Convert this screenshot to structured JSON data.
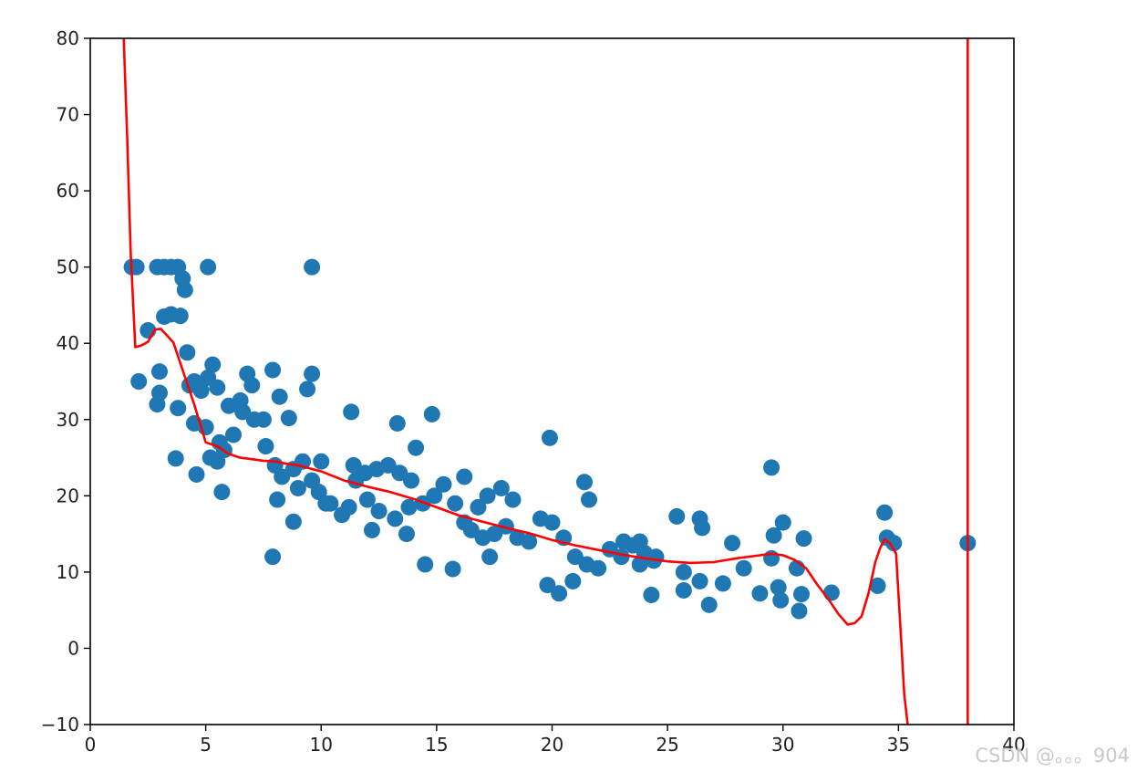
{
  "chart_data": {
    "type": "scatter",
    "title": "",
    "xlabel": "",
    "ylabel": "",
    "xlim": [
      0,
      40
    ],
    "ylim": [
      -10,
      80
    ],
    "x_ticks": [
      0,
      5,
      10,
      15,
      20,
      25,
      30,
      35,
      40
    ],
    "y_ticks": [
      -10,
      0,
      10,
      20,
      30,
      40,
      50,
      60,
      70,
      80
    ],
    "x_tick_labels": [
      "0",
      "5",
      "10",
      "15",
      "20",
      "25",
      "30",
      "35",
      "40"
    ],
    "y_tick_labels": [
      "−10",
      "0",
      "10",
      "20",
      "30",
      "40",
      "50",
      "60",
      "70",
      "80"
    ],
    "grid": false,
    "legend": "none",
    "colors": {
      "points": "#1f77b4",
      "fit_line": "#ff0000",
      "axes": "#000000"
    },
    "scatter": {
      "x": [
        1.8,
        2.0,
        2.9,
        3.2,
        3.5,
        3.8,
        4.0,
        4.1,
        5.1,
        9.6,
        2.5,
        3.2,
        3.5,
        3.9,
        4.2,
        3.0,
        3.0,
        2.1,
        2.9,
        3.8,
        4.5,
        5.0,
        5.2,
        5.5,
        4.3,
        4.8,
        5.3,
        6.0,
        6.5,
        7.0,
        7.5,
        4.6,
        5.7,
        3.7,
        4.5,
        5.1,
        5.5,
        5.8,
        6.2,
        6.6,
        7.1,
        7.6,
        8.0,
        8.3,
        8.8,
        9.2,
        9.6,
        10.0,
        6.8,
        8.2,
        9.6,
        9.4,
        8.6,
        8.1,
        9.0,
        9.9,
        10.4,
        10.9,
        11.4,
        11.9,
        12.4,
        12.9,
        13.4,
        13.9,
        7.9,
        5.6,
        7.9,
        8.8,
        10.2,
        11.5,
        12.0,
        12.5,
        13.2,
        13.8,
        14.4,
        14.9,
        15.3,
        15.8,
        16.2,
        11.3,
        13.3,
        14.1,
        14.8,
        14.5,
        15.7,
        13.7,
        11.2,
        12.2,
        16.5,
        17.0,
        17.5,
        18.0,
        18.5,
        19.0,
        17.3,
        17.8,
        16.2,
        16.8,
        18.3,
        19.5,
        20.0,
        20.5,
        21.0,
        21.5,
        17.2,
        19.9,
        21.4,
        21.6,
        19.8,
        20.3,
        20.9,
        22.0,
        22.5,
        23.0,
        23.5,
        24.0,
        24.5,
        23.1,
        24.3,
        23.8,
        25.4,
        25.7,
        26.4,
        26.5,
        27.4,
        27.8,
        28.3,
        29.0,
        29.6,
        30.0,
        29.5,
        29.5,
        29.8,
        29.9,
        30.6,
        30.8,
        30.7,
        30.9,
        32.1,
        34.1,
        34.4,
        34.5,
        34.8,
        38.0,
        26.8,
        26.4,
        25.7,
        24.4,
        23.8
      ],
      "y": [
        50,
        50,
        50,
        50,
        50,
        50,
        48.5,
        47,
        50,
        50,
        41.7,
        43.5,
        43.8,
        43.6,
        38.8,
        36.3,
        33.5,
        35,
        32,
        31.5,
        29.5,
        29,
        25,
        24.5,
        34.5,
        33.8,
        37.2,
        31.8,
        32.5,
        34.5,
        30,
        22.8,
        20.5,
        24.9,
        35,
        35.5,
        34.2,
        26,
        28,
        31,
        30,
        26.5,
        24,
        22.5,
        23.5,
        24.5,
        22,
        24.5,
        36,
        33,
        36,
        34,
        30.2,
        19.5,
        21,
        20.5,
        19,
        17.5,
        24,
        23,
        23.5,
        24,
        23,
        22,
        12,
        27,
        36.5,
        16.6,
        19,
        22,
        19.5,
        18,
        17,
        18.5,
        19,
        20,
        21.5,
        19,
        16.5,
        31,
        29.5,
        26.3,
        30.7,
        11,
        10.4,
        15,
        18.5,
        15.5,
        15.5,
        14.5,
        15,
        16,
        14.5,
        14,
        12,
        21,
        22.5,
        18.5,
        19.5,
        17,
        16.5,
        14.5,
        12,
        11,
        20,
        27.6,
        21.8,
        19.5,
        8.3,
        7.2,
        8.8,
        10.5,
        13,
        12,
        13.5,
        12.5,
        12,
        14,
        7,
        14,
        17.3,
        10,
        17,
        15.8,
        8.5,
        13.8,
        10.5,
        7.2,
        14.8,
        16.5,
        23.7,
        11.8,
        8,
        6.3,
        10.5,
        7.1,
        4.9,
        14.4,
        7.3,
        8.2,
        17.8,
        14.5,
        13.8,
        13.8,
        5.7,
        8.8,
        7.6,
        11.5,
        11
      ]
    },
    "fit_line": {
      "x": [
        1.45,
        1.6,
        1.75,
        1.95,
        2.2,
        2.5,
        2.8,
        3.05,
        3.3,
        3.6,
        4.0,
        4.5,
        5.0,
        5.5,
        6.0,
        6.5,
        7.0,
        7.5,
        8.0,
        8.5,
        9.0,
        10.0,
        11.0,
        12.0,
        13.0,
        14.0,
        15.0,
        16.0,
        17.0,
        18.0,
        19.0,
        20.0,
        21.0,
        22.0,
        23.0,
        24.0,
        25.0,
        26.0,
        27.0,
        28.0,
        29.0,
        29.5,
        30.0,
        30.5,
        31.0,
        31.5,
        32.0,
        32.4,
        32.8,
        33.1,
        33.4,
        33.7,
        34.0,
        34.2,
        34.4,
        34.65,
        34.9,
        35.1,
        35.25,
        35.4
      ],
      "y": [
        80,
        67,
        52,
        39.5,
        39.7,
        40.2,
        41.8,
        41.9,
        41.1,
        40.1,
        36.5,
        32,
        27,
        26.5,
        25.5,
        25,
        24.8,
        24.6,
        24.5,
        24.2,
        24,
        23.2,
        22,
        21.2,
        20.5,
        19.6,
        18.5,
        17.4,
        16.6,
        15.8,
        15.1,
        14.2,
        13.5,
        12.9,
        12.3,
        11.8,
        11.4,
        11.2,
        11.3,
        11.8,
        12.2,
        12.4,
        12.2,
        11.6,
        10.5,
        8.3,
        6.3,
        4.5,
        3.1,
        3.3,
        4.2,
        7.2,
        11.3,
        13.1,
        14.3,
        13.7,
        12.4,
        2,
        -6,
        -10
      ]
    },
    "vertical_line_x": 38.0
  },
  "watermark_text": "CSDN @。。。904"
}
